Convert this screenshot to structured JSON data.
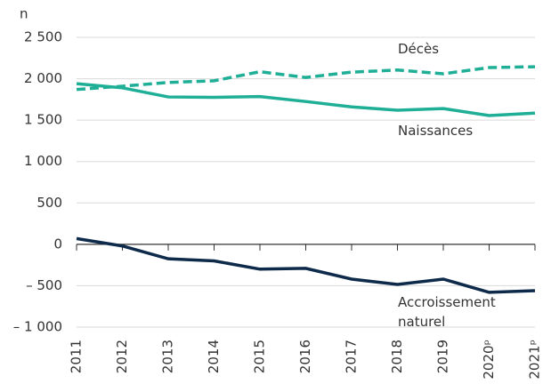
{
  "chart_data": {
    "type": "line",
    "y_label": "n",
    "categories": [
      "2011",
      "2012",
      "2013",
      "2014",
      "2015",
      "2016",
      "2017",
      "2018",
      "2019",
      "2020ᵖ",
      "2021ᵖ"
    ],
    "series": [
      {
        "name": "Décès",
        "color": "#1fae96",
        "dashed": true,
        "values": [
          1870,
          1910,
          1955,
          1975,
          2085,
          2015,
          2080,
          2105,
          2060,
          2135,
          2145
        ]
      },
      {
        "name": "Naissances",
        "color": "#1fae96",
        "dashed": false,
        "values": [
          1940,
          1890,
          1780,
          1775,
          1785,
          1725,
          1660,
          1620,
          1640,
          1555,
          1585
        ]
      },
      {
        "name": "Accroissement naturel",
        "color": "#0d2a4a",
        "dashed": false,
        "values": [
          70,
          -20,
          -175,
          -200,
          -300,
          -290,
          -420,
          -485,
          -420,
          -580,
          -560
        ]
      }
    ],
    "ylim": [
      -1000,
      2500
    ],
    "yticks": [
      {
        "value": -1000,
        "label": "– 1 000"
      },
      {
        "value": -500,
        "label": "– 500"
      },
      0,
      500,
      {
        "value": 1000,
        "label": "1 000"
      },
      {
        "value": 1500,
        "label": "1 500"
      },
      {
        "value": 2000,
        "label": "2 000"
      },
      {
        "value": 2500,
        "label": "2 500"
      }
    ],
    "grid": true
  }
}
